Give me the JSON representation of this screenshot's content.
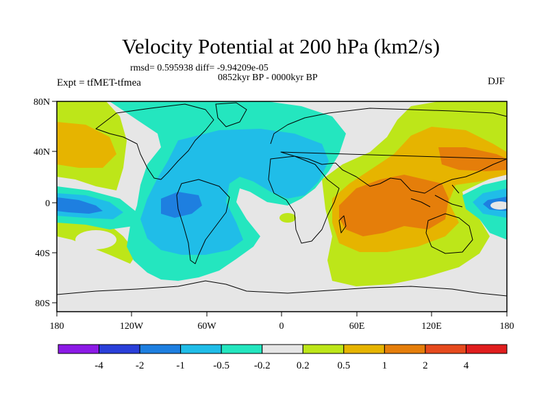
{
  "title": "Velocity Potential at 200 hPa (km2/s)",
  "stats": "rmsd= 0.595938 diff= -9.94209e-05",
  "period": "0852kyr BP - 0000kyr BP",
  "experiment": "Expt = tfMET-tfmea",
  "season": "DJF",
  "map": {
    "projection": "cylindrical equidistant",
    "lat_labels": [
      "80N",
      "40N",
      "0",
      "40S",
      "80S"
    ],
    "lon_labels": [
      "180",
      "120W",
      "60W",
      "0",
      "60E",
      "120E",
      "180"
    ]
  },
  "colorbar": {
    "labels": [
      "-4",
      "-2",
      "-1",
      "-0.5",
      "-0.2",
      "0.2",
      "0.5",
      "1",
      "2",
      "4"
    ],
    "colors": [
      "#8c1ae6",
      "#2a3fd9",
      "#1e7fe0",
      "#20bde8",
      "#24e6bf",
      "#e6e6e6",
      "#bde619",
      "#e6b400",
      "#e57e0a",
      "#e64a1e",
      "#e01e1e"
    ]
  }
}
